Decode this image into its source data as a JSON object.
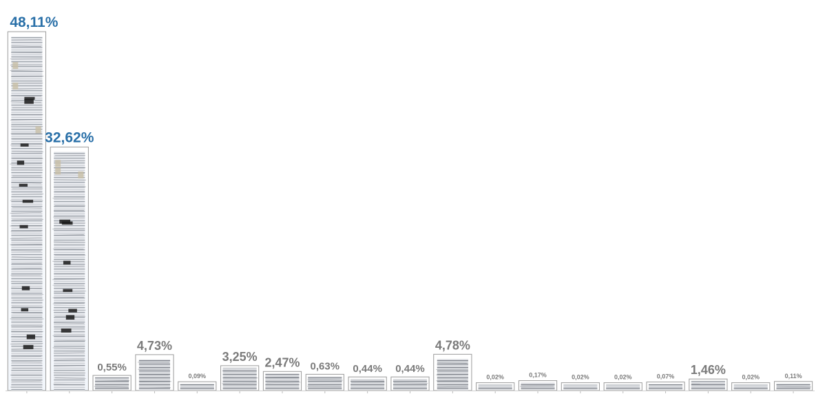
{
  "chart_data": {
    "type": "bar",
    "values": [
      48.11,
      32.62,
      0.55,
      4.73,
      0.09,
      3.25,
      2.47,
      0.63,
      0.44,
      0.44,
      4.78,
      0.02,
      0.17,
      0.02,
      0.02,
      0.07,
      1.46,
      0.02,
      0.11
    ],
    "labels": [
      "48,11%",
      "32,62%",
      "0,55%",
      "4,73%",
      "0,09%",
      "3,25%",
      "2,47%",
      "0,63%",
      "0,44%",
      "0,44%",
      "4,78%",
      "0,02%",
      "0,17%",
      "0,02%",
      "0,02%",
      "0,07%",
      "1,46%",
      "0,02%",
      "0,11%"
    ],
    "highlighted": [
      0,
      1
    ],
    "colors": {
      "highlight_label": "#2a70a8",
      "label": "#7a7a7a",
      "frame": "#9a9a9a",
      "paper_light": "#e4e6ea",
      "paper_dark": "#8e929a",
      "tab_dark": "#1a1a1a",
      "tab_tan": "#c8bfa6"
    },
    "grid": false,
    "legend": "none"
  }
}
